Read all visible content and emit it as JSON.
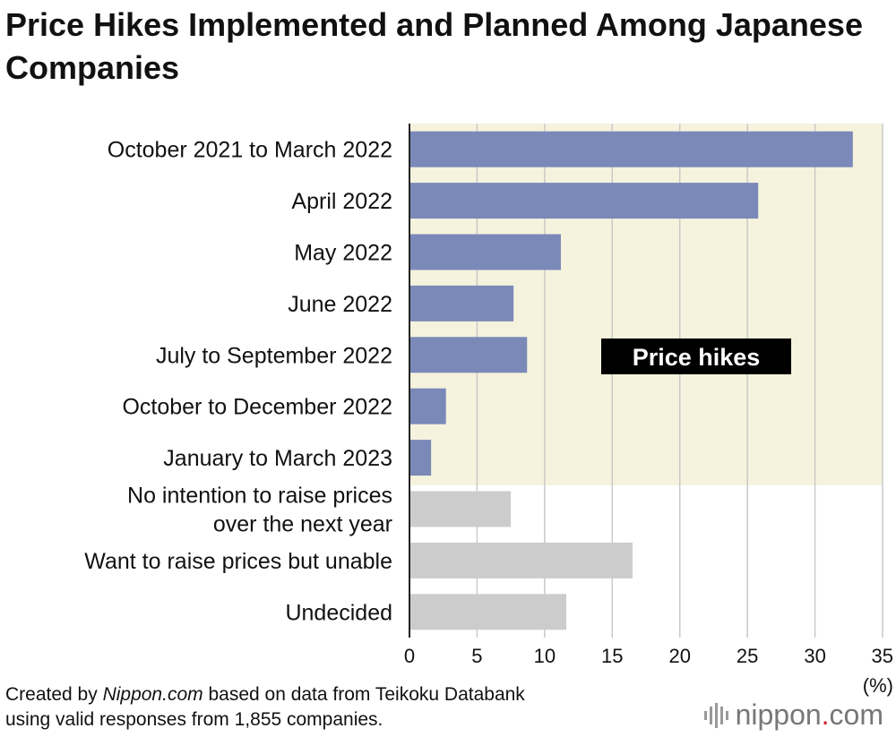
{
  "title": "Price Hikes Implemented and Planned Among Japanese Companies",
  "chart_data": {
    "type": "bar",
    "orientation": "horizontal",
    "title": "Price Hikes Implemented and Planned Among Japanese Companies",
    "categories": [
      "October 2021 to March 2022",
      "April 2022",
      "May 2022",
      "June 2022",
      "July to September 2022",
      "October to December 2022",
      "January to March 2023",
      "No intention to raise prices over the next year",
      "Want to raise prices but unable",
      "Undecided"
    ],
    "category_lines": [
      [
        "October 2021 to March 2022"
      ],
      [
        "April 2022"
      ],
      [
        "May 2022"
      ],
      [
        "June 2022"
      ],
      [
        "July to September 2022"
      ],
      [
        "October to December 2022"
      ],
      [
        "January to March 2023"
      ],
      [
        "No intention to raise prices",
        "over the next year"
      ],
      [
        "Want to raise prices but unable"
      ],
      [
        "Undecided"
      ]
    ],
    "values": [
      32.8,
      25.8,
      11.2,
      7.7,
      8.7,
      2.7,
      1.6,
      7.5,
      16.5,
      11.6
    ],
    "groups": [
      "price-hike",
      "price-hike",
      "price-hike",
      "price-hike",
      "price-hike",
      "price-hike",
      "price-hike",
      "other",
      "other",
      "other"
    ],
    "group_label": "Price hikes",
    "xlim": [
      0,
      35
    ],
    "xticks": [
      "0",
      "5",
      "10",
      "15",
      "20",
      "25",
      "30",
      "35"
    ],
    "xunit": "(%)",
    "xlabel": "",
    "ylabel": "",
    "grid": "vertical",
    "colors": {
      "price-hike": "#7b89b9",
      "other": "#cccccc",
      "highlight_band": "#f5f3dd",
      "gridline": "#c9c9c9",
      "axis": "#222222",
      "group_label_bg": "#000000",
      "group_label_text": "#ffffff"
    }
  },
  "footer": {
    "prefix": "Created by ",
    "site": "Nippon.com",
    "suffix": " based on data from Teikoku Databank",
    "line2": "using valid responses from 1,855 companies."
  },
  "brand": {
    "name": "nippon",
    "dot": ".",
    "tld": "com"
  }
}
